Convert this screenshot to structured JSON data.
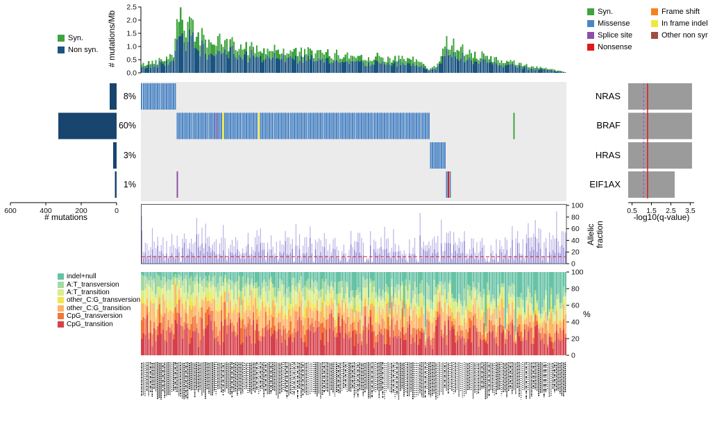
{
  "axes": {
    "rate": {
      "label": "# mutations/Mb"
    },
    "mut_count": {
      "label": "# mutations"
    },
    "qvalue": {
      "label": "-log10(q-value)"
    },
    "allelic": {
      "label_line1": "Allelic",
      "label_line2": "fraction"
    },
    "spectrum": {
      "label": "%"
    }
  },
  "genes": [
    {
      "name": "NRAS",
      "percent": "8%",
      "mutation_count": 40,
      "q_minus_log10": 3.6
    },
    {
      "name": "BRAF",
      "percent": "60%",
      "mutation_count": 330,
      "q_minus_log10": 3.6
    },
    {
      "name": "HRAS",
      "percent": "3%",
      "mutation_count": 20,
      "q_minus_log10": 3.6
    },
    {
      "name": "EIF1AX",
      "percent": "1%",
      "mutation_count": 10,
      "q_minus_log10": 2.7
    }
  ],
  "legends": {
    "rate": [
      {
        "label": "Syn.",
        "color": "#3FA33F"
      },
      {
        "label": "Non syn.",
        "color": "#1B5480"
      }
    ],
    "mutation_types_col1": [
      {
        "label": "Syn.",
        "color": "#3FA33F"
      },
      {
        "label": "Missense",
        "color": "#4C86C6"
      },
      {
        "label": "Splice site",
        "color": "#8C4FA8"
      },
      {
        "label": "Nonsense",
        "color": "#E01A1A"
      }
    ],
    "mutation_types_col2": [
      {
        "label": "Frame shift",
        "color": "#F5821F"
      },
      {
        "label": "In frame indel",
        "color": "#EFE93C"
      },
      {
        "label": "Other non syn.",
        "color": "#9E4F3F"
      }
    ],
    "spectrum": [
      {
        "label": "indel+null",
        "color": "#66C2A5"
      },
      {
        "label": "A:T_transversion",
        "color": "#A5D9A1"
      },
      {
        "label": "A:T_transition",
        "color": "#D9ED8F"
      },
      {
        "label": "other_C:G_transversion",
        "color": "#F2E74B"
      },
      {
        "label": "other_C:G_transition",
        "color": "#FDB567"
      },
      {
        "label": "CpG_transversion",
        "color": "#F4743B"
      },
      {
        "label": "CpG_transition",
        "color": "#D6404B"
      }
    ]
  },
  "chart_data": [
    {
      "type": "bar",
      "name": "mutation_rate_per_sample",
      "stacked": true,
      "ylabel": "# mutations/Mb",
      "ylim": [
        0,
        2.5
      ],
      "yticks": [
        "0.0",
        "0.5",
        "1.0",
        "1.5",
        "2.0",
        "2.5"
      ],
      "n_samples": 240,
      "series": [
        {
          "name": "Non syn.",
          "color": "#1B5480"
        },
        {
          "name": "Syn.",
          "color": "#3FA33F"
        }
      ],
      "syn_fraction_mean": 0.33,
      "noise": 0.3,
      "seed": 42,
      "envelope_total_rate": [
        [
          0,
          0.3
        ],
        [
          0.05,
          0.5
        ],
        [
          0.078,
          0.85
        ],
        [
          0.084,
          2.5
        ],
        [
          0.1,
          1.85
        ],
        [
          0.15,
          1.25
        ],
        [
          0.25,
          0.95
        ],
        [
          0.4,
          0.75
        ],
        [
          0.55,
          0.6
        ],
        [
          0.66,
          0.45
        ],
        [
          0.675,
          0.12
        ],
        [
          0.7,
          0.3
        ],
        [
          0.72,
          1.25
        ],
        [
          0.76,
          0.85
        ],
        [
          0.82,
          0.55
        ],
        [
          0.9,
          0.3
        ],
        [
          1,
          0.04
        ]
      ]
    },
    {
      "type": "heatmap",
      "name": "gene_mutation_matrix",
      "background": "#EBEBEB",
      "n_samples": 240,
      "rows": [
        {
          "gene": "NRAS",
          "percent": "8%",
          "blocks": [
            {
              "start": 0.0,
              "end": 0.082,
              "mutation_type": "Missense"
            }
          ],
          "singles": []
        },
        {
          "gene": "BRAF",
          "percent": "60%",
          "blocks": [
            {
              "start": 0.082,
              "end": 0.68,
              "mutation_type": "Missense"
            }
          ],
          "singles": [
            {
              "pos": 0.175,
              "mutation_type": "Splice site"
            },
            {
              "pos": 0.19,
              "mutation_type": "In frame indel"
            },
            {
              "pos": 0.274,
              "mutation_type": "In frame indel"
            },
            {
              "pos": 0.873,
              "mutation_type": "Syn."
            }
          ]
        },
        {
          "gene": "HRAS",
          "percent": "3%",
          "blocks": [
            {
              "start": 0.68,
              "end": 0.716,
              "mutation_type": "Missense"
            }
          ],
          "singles": []
        },
        {
          "gene": "EIF1AX",
          "percent": "1%",
          "blocks": [
            {
              "start": 0.716,
              "end": 0.728,
              "mutation_type": "Missense"
            }
          ],
          "singles": [
            {
              "pos": 0.085,
              "mutation_type": "Splice site"
            },
            {
              "pos": 0.722,
              "mutation_type": "Nonsense"
            }
          ]
        }
      ],
      "mutation_type_colors": {
        "Syn.": "#3FA33F",
        "Missense": "#4C86C6",
        "Splice site": "#8C4FA8",
        "Nonsense": "#E01A1A",
        "Frame shift": "#F5821F",
        "In frame indel": "#EFE93C",
        "Other non syn.": "#9E4F3F"
      }
    },
    {
      "type": "bar",
      "name": "mutations_per_gene",
      "orientation": "horizontal",
      "xlabel": "# mutations",
      "xticks": [
        "600",
        "400",
        "200",
        "0"
      ],
      "xlim": [
        600,
        0
      ],
      "categories": [
        "NRAS",
        "BRAF",
        "HRAS",
        "EIF1AX"
      ],
      "values": [
        40,
        330,
        20,
        10
      ],
      "bar_color": "#17456E"
    },
    {
      "type": "bar",
      "name": "gene_significance",
      "orientation": "horizontal",
      "xlabel": "-log10(q-value)",
      "xticks": [
        "0.5",
        "1.5",
        "2.5",
        "3.5"
      ],
      "xlim": [
        0.3,
        3.7
      ],
      "categories": [
        "NRAS",
        "BRAF",
        "HRAS",
        "EIF1AX"
      ],
      "values": [
        3.6,
        3.6,
        3.6,
        2.7
      ],
      "bar_color": "#9B9B9B",
      "threshold_line": {
        "value": 1.3,
        "color": "#E01010"
      },
      "secondary_line": {
        "value": 1.1,
        "color": "#9B59B6",
        "style": "dashed"
      }
    },
    {
      "type": "bar",
      "name": "allelic_fraction_per_sample",
      "ylabel": "Allelic fraction",
      "ylim": [
        0,
        100
      ],
      "yticks": [
        "0",
        "20",
        "40",
        "60",
        "80",
        "100"
      ],
      "n_samples": 240,
      "mean": 35,
      "sd": 17,
      "min": 4,
      "max": 97,
      "reference_line": {
        "value": 12,
        "color": "#E02020",
        "style": "dashed"
      },
      "bar_color": "#8F84D6",
      "seed": 7
    },
    {
      "type": "bar",
      "name": "mutation_spectrum_per_sample",
      "stacked": true,
      "normalized": true,
      "ylabel": "%",
      "ylim": [
        0,
        100
      ],
      "yticks": [
        "0",
        "20",
        "40",
        "60",
        "80",
        "100"
      ],
      "n_samples": 240,
      "seed": 99,
      "categories_bottom_to_top": [
        {
          "name": "CpG_transition",
          "color": "#D6404B",
          "mean_fraction": 0.26
        },
        {
          "name": "CpG_transversion",
          "color": "#F4743B",
          "mean_fraction": 0.12
        },
        {
          "name": "other_C:G_transition",
          "color": "#FDB567",
          "mean_fraction": 0.17
        },
        {
          "name": "other_C:G_transversion",
          "color": "#F2E74B",
          "mean_fraction": 0.06
        },
        {
          "name": "A:T_transition",
          "color": "#D9ED8F",
          "mean_fraction": 0.13
        },
        {
          "name": "A:T_transversion",
          "color": "#A5D9A1",
          "mean_fraction": 0.1
        },
        {
          "name": "indel+null",
          "color": "#66C2A5",
          "mean_fraction": 0.16
        }
      ]
    },
    {
      "type": "other",
      "name": "sample_id_labels",
      "n_samples": 240,
      "legible": false
    }
  ]
}
